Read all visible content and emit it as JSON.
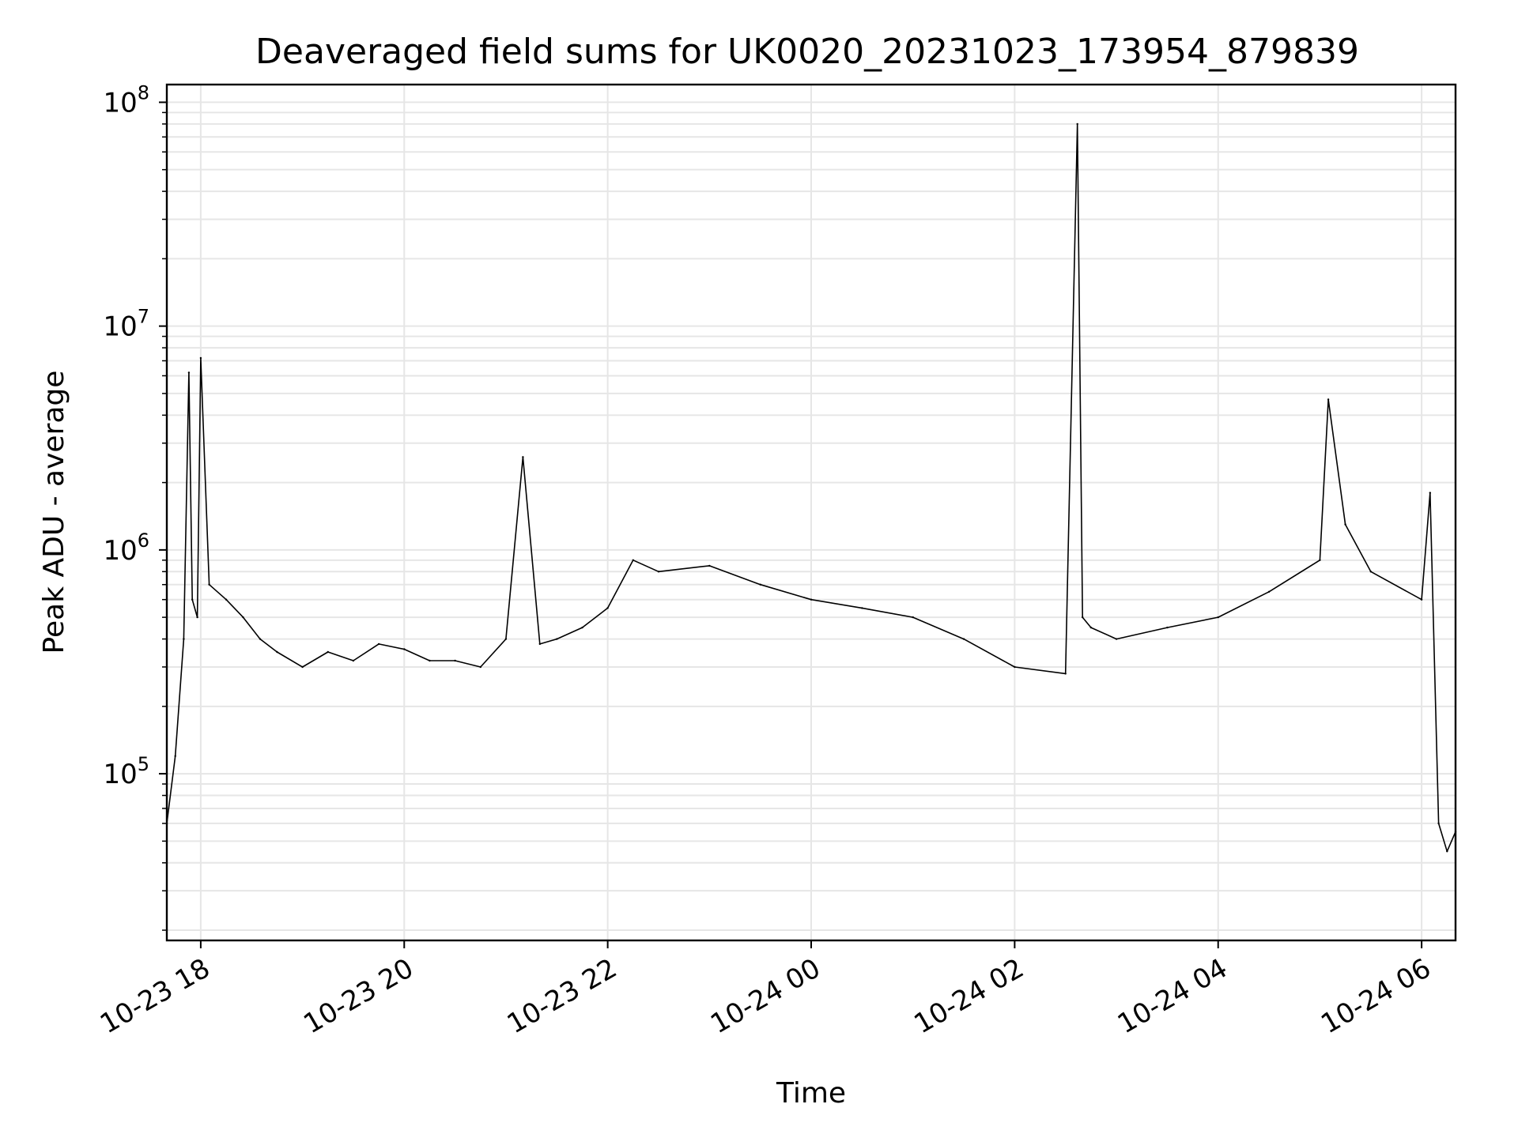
{
  "chart_data": {
    "type": "line",
    "title": "Deaveraged field sums for UK0020_20231023_173954_879839",
    "xlabel": "Time",
    "ylabel": "Peak ADU - average",
    "yscale": "log",
    "grid": true,
    "ylim": [
      18000,
      120000000
    ],
    "xlim": [
      "2023-10-23T17:40",
      "2023-10-24T06:20"
    ],
    "x_ticks": [
      {
        "label": "10-23 18",
        "time": "2023-10-23T18:00"
      },
      {
        "label": "10-23 20",
        "time": "2023-10-23T20:00"
      },
      {
        "label": "10-23 22",
        "time": "2023-10-23T22:00"
      },
      {
        "label": "10-24 00",
        "time": "2023-10-24T00:00"
      },
      {
        "label": "10-24 02",
        "time": "2023-10-24T02:00"
      },
      {
        "label": "10-24 04",
        "time": "2023-10-24T04:00"
      },
      {
        "label": "10-24 06",
        "time": "2023-10-24T06:00"
      }
    ],
    "y_ticks": [
      {
        "base": "10",
        "exp": "5",
        "value": 100000
      },
      {
        "base": "10",
        "exp": "6",
        "value": 1000000
      },
      {
        "base": "10",
        "exp": "7",
        "value": 10000000
      },
      {
        "base": "10",
        "exp": "8",
        "value": 100000000
      }
    ],
    "series": [
      {
        "color": "#000000",
        "x": [
          "2023-10-23T17:40",
          "2023-10-23T17:45",
          "2023-10-23T17:50",
          "2023-10-23T17:53",
          "2023-10-23T17:55",
          "2023-10-23T17:58",
          "2023-10-23T18:00",
          "2023-10-23T18:05",
          "2023-10-23T18:15",
          "2023-10-23T18:25",
          "2023-10-23T18:35",
          "2023-10-23T18:45",
          "2023-10-23T19:00",
          "2023-10-23T19:15",
          "2023-10-23T19:30",
          "2023-10-23T19:45",
          "2023-10-23T20:00",
          "2023-10-23T20:15",
          "2023-10-23T20:30",
          "2023-10-23T20:45",
          "2023-10-23T21:00",
          "2023-10-23T21:10",
          "2023-10-23T21:20",
          "2023-10-23T21:30",
          "2023-10-23T21:45",
          "2023-10-23T22:00",
          "2023-10-23T22:15",
          "2023-10-23T22:30",
          "2023-10-23T23:00",
          "2023-10-23T23:30",
          "2023-10-24T00:00",
          "2023-10-24T00:30",
          "2023-10-24T01:00",
          "2023-10-24T01:30",
          "2023-10-24T02:00",
          "2023-10-24T02:30",
          "2023-10-24T02:37",
          "2023-10-24T02:40",
          "2023-10-24T02:45",
          "2023-10-24T03:00",
          "2023-10-24T03:30",
          "2023-10-24T04:00",
          "2023-10-24T04:30",
          "2023-10-24T05:00",
          "2023-10-24T05:05",
          "2023-10-24T05:15",
          "2023-10-24T05:30",
          "2023-10-24T06:00",
          "2023-10-24T06:05",
          "2023-10-24T06:10",
          "2023-10-24T06:15",
          "2023-10-24T06:20"
        ],
        "y": [
          60000,
          120000,
          400000,
          6200000,
          600000,
          500000,
          7200000,
          700000,
          600000,
          500000,
          400000,
          350000,
          300000,
          350000,
          320000,
          380000,
          360000,
          320000,
          320000,
          300000,
          400000,
          2600000,
          380000,
          400000,
          450000,
          550000,
          900000,
          800000,
          850000,
          700000,
          600000,
          550000,
          500000,
          400000,
          300000,
          280000,
          80000000,
          500000,
          450000,
          400000,
          450000,
          500000,
          650000,
          900000,
          4700000,
          1300000,
          800000,
          600000,
          1800000,
          60000,
          45000,
          55000
        ]
      }
    ]
  }
}
